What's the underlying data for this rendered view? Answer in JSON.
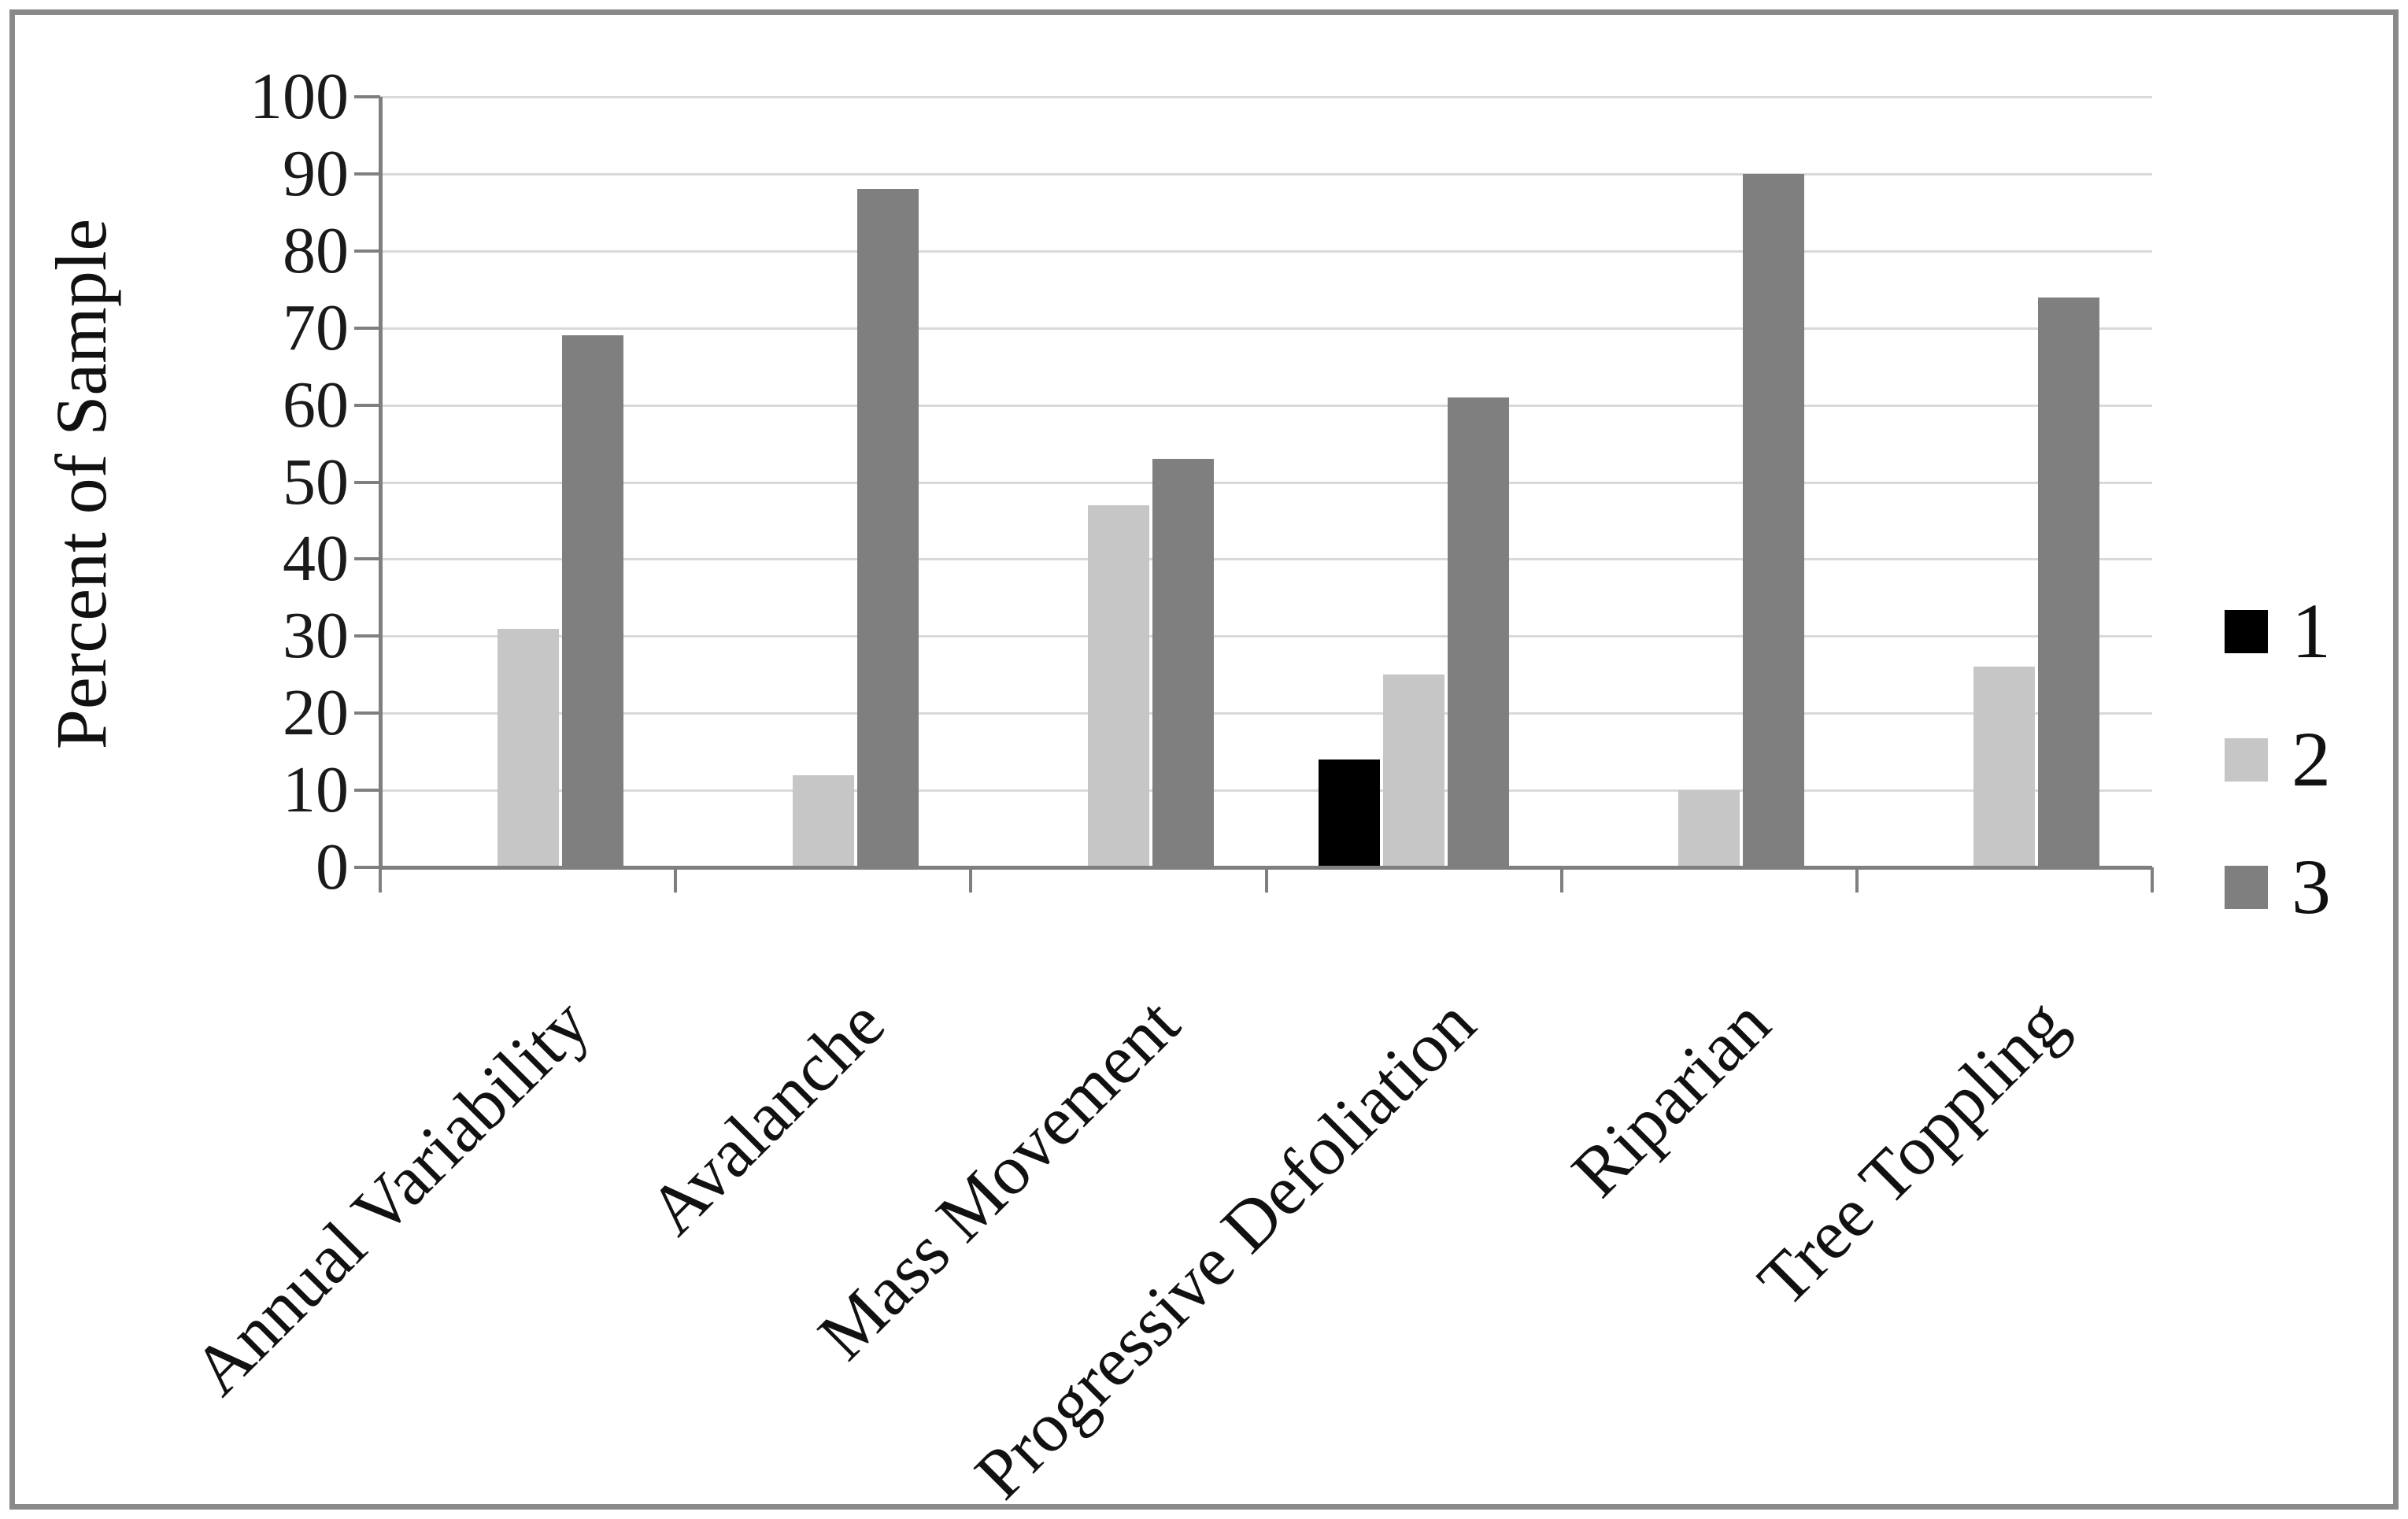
{
  "figure": {
    "background": "#ffffff",
    "frame_color": "#8a8a8a"
  },
  "chart_data": {
    "type": "bar",
    "title": "",
    "xlabel": "",
    "ylabel": "Percent of Sample",
    "ylim": [
      0,
      100
    ],
    "ytick_step": 10,
    "ytick_labels": [
      "0",
      "10",
      "20",
      "30",
      "40",
      "50",
      "60",
      "70",
      "80",
      "90",
      "100"
    ],
    "grid": "horizontal",
    "gridline_color": "#d9d9d9",
    "axis_color": "#7f7f7f",
    "legend_position": "right",
    "categories": [
      "Annual Variability",
      "Avalanche",
      "Mass Movement",
      "Progressive Defoliation",
      "Riparian",
      "Tree Toppling"
    ],
    "series": [
      {
        "name": "1",
        "color": "#000000",
        "values": [
          0,
          0,
          0,
          14,
          0,
          0
        ]
      },
      {
        "name": "2",
        "color": "#c6c6c6",
        "values": [
          31,
          12,
          47,
          25,
          10,
          26
        ]
      },
      {
        "name": "3",
        "color": "#7f7f7f",
        "values": [
          69,
          88,
          53,
          61,
          90,
          74
        ]
      }
    ]
  }
}
